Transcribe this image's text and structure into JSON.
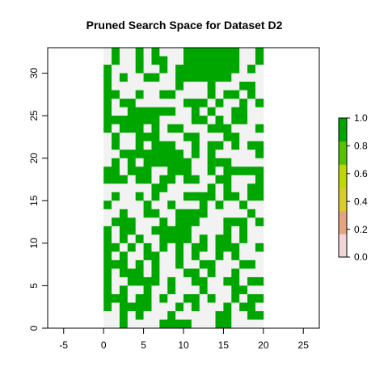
{
  "chart_data": {
    "type": "heatmap",
    "title": "Pruned Search Space for Dataset D2",
    "xlabel": "",
    "ylabel": "",
    "xlim": [
      -7,
      27
    ],
    "ylim": [
      0,
      33
    ],
    "x_ticks": [
      -5,
      0,
      5,
      10,
      15,
      20,
      25
    ],
    "y_ticks": [
      0,
      5,
      10,
      15,
      20,
      25,
      30
    ],
    "grid_x_range": [
      0,
      20
    ],
    "grid_y_range": [
      0,
      33
    ],
    "cell_value_range": [
      0,
      1
    ],
    "colorbar": {
      "ticks": [
        "0.0",
        "0.2",
        "0.4",
        "0.6",
        "0.8",
        "1.0"
      ],
      "colors": [
        "#f2d6d6",
        "#e5a380",
        "#d9cc2c",
        "#bfd700",
        "#55c100",
        "#00a600"
      ]
    },
    "colors": {
      "one": "#00a600",
      "zero": "#f2f2f2"
    },
    "rows_top_to_bottom": [
      "01001010001111111001",
      "01001011001111111001",
      "10001001011111111010",
      "10100110011111110000",
      "10000000010001000110",
      "11001001100001011010",
      "10110000001110100101",
      "10011111100101001100",
      "11111110000110101100",
      "10111010110001110001",
      "01001110001100011000",
      "01001011100101101011",
      "00111111110101000001",
      "01010111111001110000",
      "11011100111001011111",
      "11101101101100110001",
      "00000011000001010011",
      "01001010001111011011",
      "10000100100010100100",
      "00100110011110000010",
      "01110001011100011101",
      "10110011111000010100",
      "10101001111010110100",
      "11010101010110111001",
      "10100110010100101000",
      "11101010010011000110",
      "10111010001101001000",
      "10011110100110011011",
      "10100100100010001100",
      "11101101001101001011",
      "10111100010100010110",
      "00101000100000110011",
      "00100001111000110000"
    ]
  }
}
